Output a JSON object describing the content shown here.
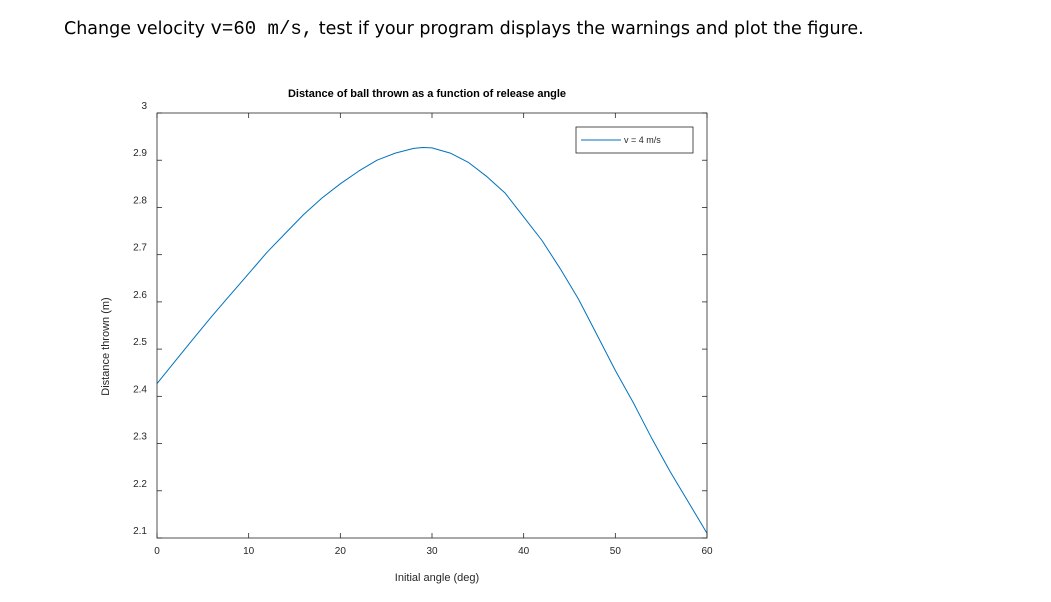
{
  "instruction": {
    "text_before": "Change velocity ",
    "code": "v=60 m/s,",
    "text_after": " test if your program displays the warnings and plot the figure."
  },
  "chart_data": {
    "type": "line",
    "title": "Distance of ball thrown as a function of release angle",
    "xlabel": "Initial angle (deg)",
    "ylabel": "Distance thrown (m)",
    "xlim": [
      0,
      60
    ],
    "ylim": [
      2.1,
      3.0
    ],
    "xticks": [
      0,
      10,
      20,
      30,
      40,
      50,
      60
    ],
    "yticks": [
      2.1,
      2.2,
      2.3,
      2.4,
      2.5,
      2.6,
      2.7,
      2.8,
      2.9,
      3.0
    ],
    "xtick_labels": [
      "0",
      "10",
      "20",
      "30",
      "40",
      "50",
      "60"
    ],
    "ytick_labels": [
      "2.1",
      "2.2",
      "2.3",
      "2.4",
      "2.5",
      "2.6",
      "2.7",
      "2.8",
      "2.9",
      "3"
    ],
    "grid": false,
    "legend_position": "top-right",
    "series": [
      {
        "name": "v = 4 m/s",
        "color": "#0072BD",
        "x": [
          0,
          2,
          4,
          6,
          8,
          10,
          12,
          14,
          16,
          18,
          20,
          22,
          24,
          26,
          28,
          29,
          30,
          32,
          34,
          36,
          38,
          40,
          42,
          44,
          46,
          48,
          50,
          52,
          54,
          56,
          58,
          60
        ],
        "y": [
          2.427,
          2.475,
          2.523,
          2.57,
          2.615,
          2.66,
          2.705,
          2.745,
          2.785,
          2.82,
          2.85,
          2.877,
          2.9,
          2.915,
          2.925,
          2.927,
          2.926,
          2.915,
          2.895,
          2.865,
          2.83,
          2.78,
          2.73,
          2.67,
          2.605,
          2.53,
          2.455,
          2.385,
          2.31,
          2.24,
          2.175,
          2.11
        ]
      }
    ]
  }
}
